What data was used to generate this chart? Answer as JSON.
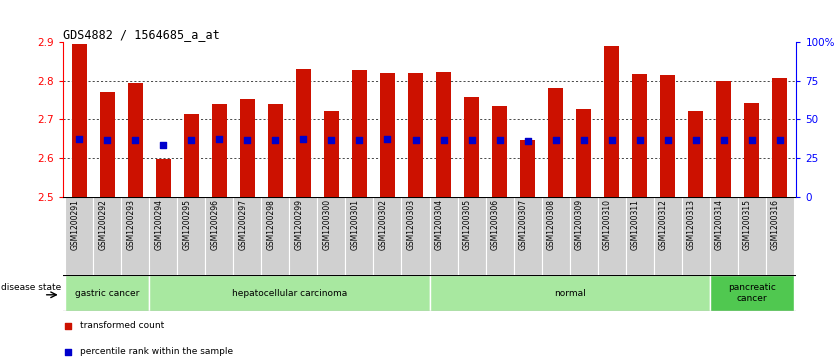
{
  "title": "GDS4882 / 1564685_a_at",
  "samples": [
    "GSM1200291",
    "GSM1200292",
    "GSM1200293",
    "GSM1200294",
    "GSM1200295",
    "GSM1200296",
    "GSM1200297",
    "GSM1200298",
    "GSM1200299",
    "GSM1200300",
    "GSM1200301",
    "GSM1200302",
    "GSM1200303",
    "GSM1200304",
    "GSM1200305",
    "GSM1200306",
    "GSM1200307",
    "GSM1200308",
    "GSM1200309",
    "GSM1200310",
    "GSM1200311",
    "GSM1200312",
    "GSM1200313",
    "GSM1200314",
    "GSM1200315",
    "GSM1200316"
  ],
  "bar_tops": [
    2.895,
    2.772,
    2.795,
    2.597,
    2.715,
    2.74,
    2.753,
    2.74,
    2.83,
    2.723,
    2.827,
    2.82,
    2.82,
    2.823,
    2.757,
    2.735,
    2.648,
    2.782,
    2.728,
    2.89,
    2.818,
    2.815,
    2.723,
    2.8,
    2.743,
    2.807
  ],
  "blue_dot_y": [
    2.649,
    2.648,
    2.648,
    2.635,
    2.648,
    2.649,
    2.646,
    2.646,
    2.649,
    2.648,
    2.648,
    2.649,
    2.648,
    2.648,
    2.648,
    2.646,
    2.645,
    2.648,
    2.648,
    2.648,
    2.648,
    2.648,
    2.648,
    2.648,
    2.648,
    2.648
  ],
  "disease_groups": [
    {
      "label": "gastric cancer",
      "start": 0,
      "end": 3,
      "color": "#a8e8a0"
    },
    {
      "label": "hepatocellular carcinoma",
      "start": 3,
      "end": 13,
      "color": "#a8e8a0"
    },
    {
      "label": "normal",
      "start": 13,
      "end": 23,
      "color": "#a8e8a0"
    },
    {
      "label": "pancreatic\ncancer",
      "start": 23,
      "end": 26,
      "color": "#50c850"
    }
  ],
  "bar_color": "#CC1100",
  "dot_color": "#0000CC",
  "bar_bottom": 2.5,
  "ylim": [
    2.5,
    2.9
  ],
  "yticks_left": [
    2.5,
    2.6,
    2.7,
    2.8,
    2.9
  ],
  "right_ytick_values": [
    0,
    25,
    50,
    75,
    100
  ],
  "grid_lines": [
    2.6,
    2.7,
    2.8
  ],
  "legend_items": [
    {
      "color": "#CC1100",
      "label": "transformed count"
    },
    {
      "color": "#0000CC",
      "label": "percentile rank within the sample"
    }
  ],
  "disease_state_label": "disease state",
  "xtick_bg_color": "#D0D0D0",
  "xtick_border_color": "#AAAAAA"
}
